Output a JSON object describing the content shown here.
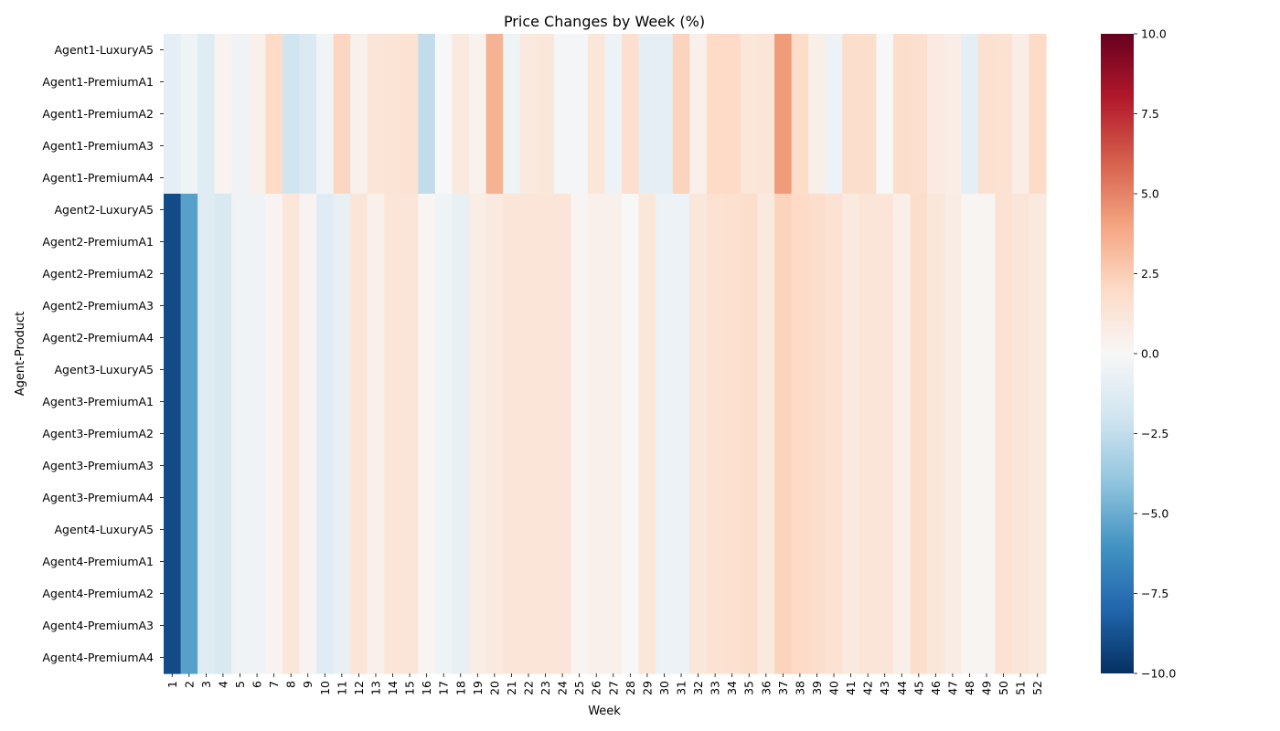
{
  "chart_data": {
    "type": "heatmap",
    "title": "Price Changes by Week (%)",
    "xlabel": "Week",
    "ylabel": "Agent-Product",
    "x": [
      1,
      2,
      3,
      4,
      5,
      6,
      7,
      8,
      9,
      10,
      11,
      12,
      13,
      14,
      15,
      16,
      17,
      18,
      19,
      20,
      21,
      22,
      23,
      24,
      25,
      26,
      27,
      28,
      29,
      30,
      31,
      32,
      33,
      34,
      35,
      36,
      37,
      38,
      39,
      40,
      41,
      42,
      43,
      44,
      45,
      46,
      47,
      48,
      49,
      50,
      51,
      52
    ],
    "y": [
      "Agent1-LuxuryA5",
      "Agent1-PremiumA1",
      "Agent1-PremiumA2",
      "Agent1-PremiumA3",
      "Agent1-PremiumA4",
      "Agent2-LuxuryA5",
      "Agent2-PremiumA1",
      "Agent2-PremiumA2",
      "Agent2-PremiumA3",
      "Agent2-PremiumA4",
      "Agent3-LuxuryA5",
      "Agent3-PremiumA1",
      "Agent3-PremiumA2",
      "Agent3-PremiumA3",
      "Agent3-PremiumA4",
      "Agent4-LuxuryA5",
      "Agent4-PremiumA1",
      "Agent4-PremiumA2",
      "Agent4-PremiumA3",
      "Agent4-PremiumA4"
    ],
    "row_groups": [
      {
        "rows": [
          0,
          1,
          2,
          3,
          4
        ],
        "values": [
          -1.0,
          -0.5,
          -1.2,
          0.3,
          -0.4,
          0.5,
          2.0,
          -2.0,
          -1.5,
          -0.3,
          2.2,
          0.5,
          1.3,
          1.4,
          1.5,
          -2.5,
          0.0,
          1.0,
          0.4,
          3.5,
          -0.5,
          1.0,
          1.2,
          -0.2,
          -0.2,
          1.2,
          -0.6,
          1.7,
          -1.0,
          -1.0,
          2.3,
          0.5,
          2.0,
          2.0,
          1.2,
          1.3,
          4.3,
          1.9,
          0.6,
          -0.6,
          1.8,
          1.8,
          0.0,
          1.8,
          1.7,
          0.9,
          0.7,
          -1.0,
          1.6,
          1.5,
          0.7,
          2.0
        ]
      },
      {
        "rows": [
          5,
          6,
          7,
          8,
          9,
          10,
          11,
          12,
          13,
          14,
          15,
          16,
          17,
          18,
          19
        ],
        "values": [
          -9.0,
          -5.5,
          -1.2,
          -1.6,
          -0.4,
          -0.4,
          0.3,
          1.2,
          0.3,
          -1.2,
          -0.8,
          1.3,
          0.5,
          1.3,
          1.3,
          0.2,
          -0.5,
          -0.8,
          0.7,
          1.0,
          1.3,
          1.3,
          1.3,
          1.3,
          0.2,
          0.5,
          0.5,
          0.0,
          1.2,
          -0.6,
          -0.6,
          1.2,
          1.5,
          1.6,
          1.8,
          1.0,
          2.3,
          2.0,
          1.8,
          1.5,
          1.0,
          1.3,
          1.3,
          0.6,
          1.8,
          1.2,
          0.8,
          0.2,
          0.2,
          1.5,
          1.3,
          1.0
        ]
      }
    ],
    "colorbar": {
      "cmap": "RdBu_r",
      "vmin": -10,
      "vmax": 10,
      "ticks": [
        -10.0,
        -7.5,
        -5.0,
        -2.5,
        0.0,
        2.5,
        5.0,
        7.5,
        10.0
      ]
    },
    "grid": false,
    "legend": "colorbar-right"
  }
}
